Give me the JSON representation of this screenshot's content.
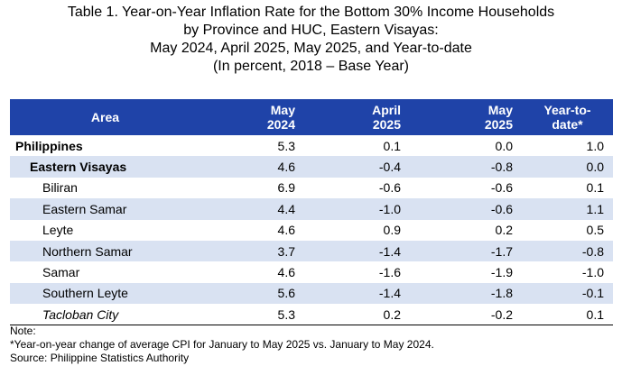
{
  "title": {
    "line1": "Table 1. Year-on-Year Inflation Rate for the Bottom 30% Income Households",
    "line2": "by Province and HUC, Eastern Visayas:",
    "line3": "May 2024, April 2025, May 2025, and Year-to-date",
    "line4": "(In percent, 2018 – Base Year)"
  },
  "table": {
    "headers": {
      "area": "Area",
      "col1_a": "May",
      "col1_b": "2024",
      "col2_a": "April",
      "col2_b": "2025",
      "col3_a": "May",
      "col3_b": "2025",
      "col4_a": "Year-to-",
      "col4_b": "date*"
    },
    "rows": [
      {
        "area": "Philippines",
        "may2024": "5.3",
        "apr2025": "0.1",
        "may2025": "0.0",
        "ytd": "1.0"
      },
      {
        "area": "Eastern Visayas",
        "may2024": "4.6",
        "apr2025": "-0.4",
        "may2025": "-0.8",
        "ytd": "0.0"
      },
      {
        "area": "Biliran",
        "may2024": "6.9",
        "apr2025": "-0.6",
        "may2025": "-0.6",
        "ytd": "0.1"
      },
      {
        "area": "Eastern Samar",
        "may2024": "4.4",
        "apr2025": "-1.0",
        "may2025": "-0.6",
        "ytd": "1.1"
      },
      {
        "area": "Leyte",
        "may2024": "4.6",
        "apr2025": "0.9",
        "may2025": "0.2",
        "ytd": "0.5"
      },
      {
        "area": "Northern Samar",
        "may2024": "3.7",
        "apr2025": "-1.4",
        "may2025": "-1.7",
        "ytd": "-0.8"
      },
      {
        "area": "Samar",
        "may2024": "4.6",
        "apr2025": "-1.6",
        "may2025": "-1.9",
        "ytd": "-1.0"
      },
      {
        "area": "Southern Leyte",
        "may2024": "5.6",
        "apr2025": "-1.4",
        "may2025": "-1.8",
        "ytd": "-0.1"
      },
      {
        "area": "Tacloban City",
        "may2024": "5.3",
        "apr2025": "0.2",
        "may2025": "-0.2",
        "ytd": "0.1"
      }
    ]
  },
  "notes": {
    "label": "Note:",
    "footnote": "*Year-on-year change of average CPI for January to May 2025 vs. January to May 2024.",
    "source": "Source: Philippine Statistics Authority"
  },
  "colors": {
    "header_bg": "#1f43a8",
    "header_text": "#ffffff",
    "shaded_row": "#d9e2f2"
  }
}
